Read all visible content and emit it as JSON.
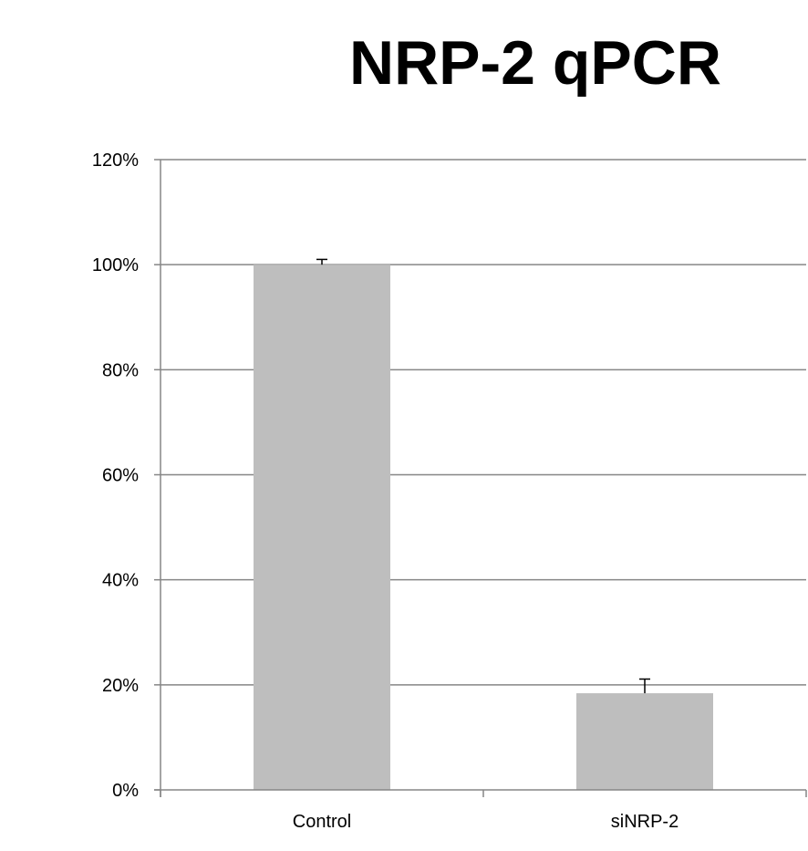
{
  "chart_data": {
    "type": "bar",
    "title": "NRP-2 qPCR",
    "xlabel": "",
    "ylabel": "",
    "categories": [
      "Control",
      "siNRP-2"
    ],
    "values": [
      1.0,
      0.184
    ],
    "error": [
      0.01,
      0.027
    ],
    "ylim": [
      0,
      1.2
    ],
    "yticks": [
      0,
      0.2,
      0.4,
      0.6,
      0.8,
      1.0,
      1.2
    ],
    "ytick_labels": [
      "0%",
      "20%",
      "40%",
      "60%",
      "80%",
      "100%",
      "120%"
    ],
    "grid": true,
    "legend": "none",
    "colors": {
      "bar": "#bebebe",
      "grid": "#868686",
      "axis": "#868686",
      "errorbar": "#000000"
    }
  }
}
